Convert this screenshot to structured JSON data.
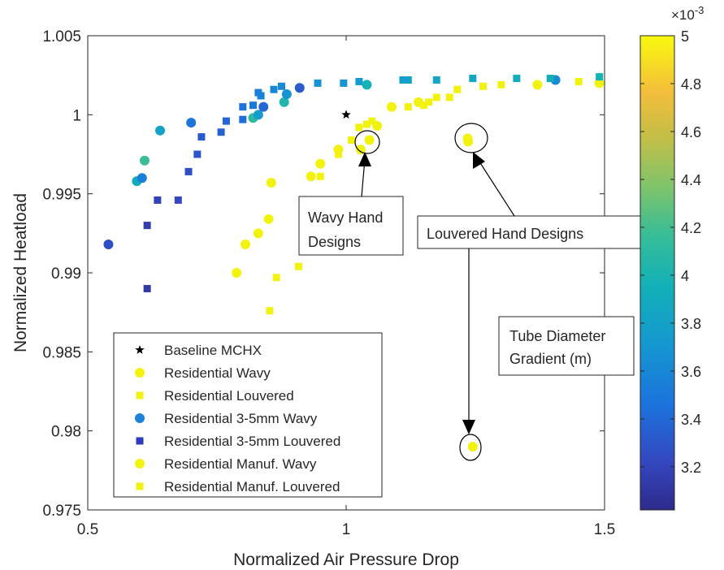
{
  "chart_data": {
    "type": "scatter",
    "xlabel": "Normalized Air Pressure Drop",
    "ylabel": "Normalized Heatload",
    "xlim": [
      0.5,
      1.5
    ],
    "ylim": [
      0.975,
      1.005
    ],
    "x_ticks": [
      "0.5",
      "1",
      "1.5"
    ],
    "x_tick_values": [
      0.5,
      1.0,
      1.5
    ],
    "y_ticks": [
      "0.975",
      "0.98",
      "0.985",
      "0.99",
      "0.995",
      "1",
      "1.005"
    ],
    "y_tick_values": [
      0.975,
      0.98,
      0.985,
      0.99,
      0.995,
      1.0,
      1.005
    ],
    "grid": false,
    "legend_position": "bottom-left",
    "colorbar": {
      "label": "Tube Diameter Gradient (m)",
      "exponent_label": "×10",
      "exponent_power": "-3",
      "range": [
        3.02,
        5.0
      ],
      "ticks": [
        "3.2",
        "3.4",
        "3.6",
        "3.8",
        "4",
        "4.2",
        "4.4",
        "4.6",
        "4.8",
        "5"
      ],
      "tick_values": [
        3.2,
        3.4,
        3.6,
        3.8,
        4.0,
        4.2,
        4.4,
        4.6,
        4.8,
        5.0
      ],
      "colormap": "parula"
    },
    "annotations": [
      {
        "text_lines": [
          "Wavy Hand",
          "Designs"
        ]
      },
      {
        "text_lines": [
          "Louvered Hand Designs"
        ]
      }
    ],
    "legend_entries": [
      {
        "label": "Baseline MCHX",
        "marker": "star",
        "color": "#000000"
      },
      {
        "label": "Residential Wavy",
        "marker": "circle",
        "color": "#f2f20f"
      },
      {
        "label": "Residential Louvered",
        "marker": "square",
        "color": "#f2f20f"
      },
      {
        "label": "Residential 3-5mm Wavy",
        "marker": "circle",
        "color": "#1f82d9"
      },
      {
        "label": "Residential 3-5mm Louvered",
        "marker": "square",
        "color": "#2e3bbf"
      },
      {
        "label": "Residential Manuf. Wavy",
        "marker": "circle",
        "color": "#f2f20f"
      },
      {
        "label": "Residential Manuf. Louvered",
        "marker": "square",
        "color": "#f2f20f"
      }
    ],
    "series": [
      {
        "name": "Baseline MCHX",
        "marker": "star",
        "points": [
          [
            1.0,
            1.0
          ]
        ]
      },
      {
        "name": "Residential Wavy",
        "marker": "circle",
        "points": [
          [
            0.788,
            0.99
          ],
          [
            0.805,
            0.9918
          ],
          [
            0.83,
            0.9925
          ],
          [
            0.85,
            0.9934
          ],
          [
            0.855,
            0.9957
          ],
          [
            0.932,
            0.9961
          ],
          [
            0.95,
            0.9969
          ],
          [
            0.985,
            0.9978
          ],
          [
            1.028,
            0.9978
          ],
          [
            1.045,
            0.9984
          ],
          [
            1.06,
            0.9993
          ],
          [
            1.088,
            1.0005
          ],
          [
            1.14,
            1.0008
          ],
          [
            1.235,
            0.9985
          ],
          [
            1.236,
            0.9983
          ],
          [
            1.245,
            0.979
          ],
          [
            1.37,
            1.0019
          ],
          [
            1.49,
            1.002
          ]
        ]
      },
      {
        "name": "Residential Louvered",
        "marker": "square",
        "points": [
          [
            0.852,
            0.9876
          ],
          [
            0.865,
            0.9897
          ],
          [
            0.908,
            0.9904
          ],
          [
            0.95,
            0.9961
          ],
          [
            0.985,
            0.9975
          ],
          [
            1.01,
            0.9984
          ],
          [
            1.025,
            0.9992
          ],
          [
            1.04,
            0.9994
          ],
          [
            1.05,
            0.9996
          ],
          [
            1.12,
            1.0005
          ],
          [
            1.15,
            1.0006
          ],
          [
            1.16,
            1.0008
          ],
          [
            1.175,
            1.0011
          ],
          [
            1.2,
            1.0011
          ],
          [
            1.215,
            1.0016
          ],
          [
            1.265,
            1.0018
          ],
          [
            1.3,
            1.0019
          ],
          [
            1.45,
            1.0021
          ],
          [
            1.49,
            1.0021
          ]
        ]
      },
      {
        "name": "Residential 3-5mm Wavy",
        "marker": "circle",
        "points": [
          [
            0.54,
            0.9918
          ],
          [
            0.595,
            0.9958
          ],
          [
            0.605,
            0.996
          ],
          [
            0.61,
            0.9971
          ],
          [
            0.64,
            0.999
          ],
          [
            0.7,
            0.9995
          ],
          [
            0.82,
            0.9998
          ],
          [
            0.83,
            1.0
          ],
          [
            0.84,
            1.0005
          ],
          [
            0.88,
            1.0008
          ],
          [
            0.885,
            1.0013
          ],
          [
            0.91,
            1.0017
          ],
          [
            1.04,
            1.0019
          ],
          [
            1.405,
            1.0022
          ]
        ]
      },
      {
        "name": "Residential 3-5mm Louvered",
        "marker": "square",
        "points": [
          [
            0.615,
            0.989
          ],
          [
            0.615,
            0.993
          ],
          [
            0.635,
            0.9946
          ],
          [
            0.675,
            0.9946
          ],
          [
            0.695,
            0.9964
          ],
          [
            0.712,
            0.9975
          ],
          [
            0.72,
            0.9986
          ],
          [
            0.758,
            0.9989
          ],
          [
            0.768,
            0.9996
          ],
          [
            0.8,
            0.9997
          ],
          [
            0.8,
            1.0005
          ],
          [
            0.82,
            1.0006
          ],
          [
            0.83,
            1.0014
          ],
          [
            0.835,
            1.0012
          ],
          [
            0.86,
            1.0016
          ],
          [
            0.875,
            1.0018
          ],
          [
            0.945,
            1.002
          ],
          [
            0.995,
            1.002
          ],
          [
            1.025,
            1.0021
          ],
          [
            1.11,
            1.0022
          ],
          [
            1.12,
            1.0022
          ],
          [
            1.175,
            1.0022
          ],
          [
            1.245,
            1.0023
          ],
          [
            1.33,
            1.0023
          ],
          [
            1.395,
            1.0023
          ],
          [
            1.49,
            1.0024
          ]
        ]
      }
    ]
  }
}
